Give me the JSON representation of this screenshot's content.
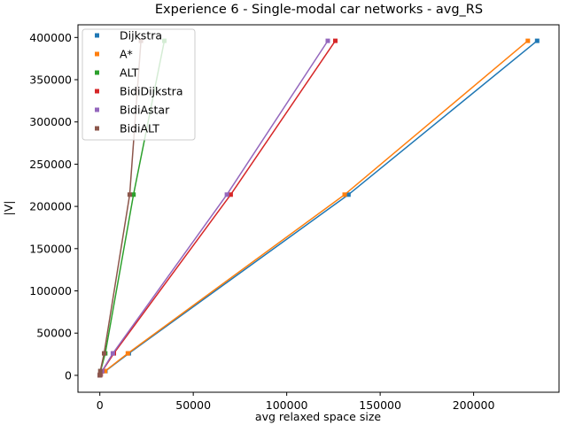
{
  "chart_data": {
    "type": "line",
    "title": "Experience 6 - Single-modal car networks - avg_RS",
    "xlabel": "avg relaxed space size",
    "ylabel": "|V|",
    "xlim": [
      -11700,
      245700
    ],
    "ylim": [
      -20000,
      415000
    ],
    "xticks": [
      0,
      50000,
      100000,
      150000,
      200000
    ],
    "yticks": [
      0,
      50000,
      100000,
      150000,
      200000,
      250000,
      300000,
      350000,
      400000
    ],
    "legend_position": "top-left",
    "grid": false,
    "y_values": [
      0,
      1000,
      5000,
      26000,
      214000,
      396000
    ],
    "series": [
      {
        "name": "Dijkstra",
        "color": "#1f77b4",
        "x": [
          0,
          500,
          3000,
          15500,
          133000,
          234000
        ]
      },
      {
        "name": "A*",
        "color": "#ff7f0e",
        "x": [
          0,
          500,
          2800,
          15000,
          131000,
          229000
        ]
      },
      {
        "name": "ALT",
        "color": "#2ca02c",
        "x": [
          0,
          150,
          400,
          2900,
          18000,
          34500
        ]
      },
      {
        "name": "BidiDijkstra",
        "color": "#d62728",
        "x": [
          0,
          300,
          1300,
          7500,
          70000,
          126000
        ]
      },
      {
        "name": "BidiAstar",
        "color": "#9467bd",
        "x": [
          0,
          300,
          1200,
          7000,
          68000,
          122000
        ]
      },
      {
        "name": "BidiALT",
        "color": "#8c564b",
        "x": [
          0,
          100,
          250,
          2300,
          16000,
          22000
        ]
      }
    ]
  }
}
